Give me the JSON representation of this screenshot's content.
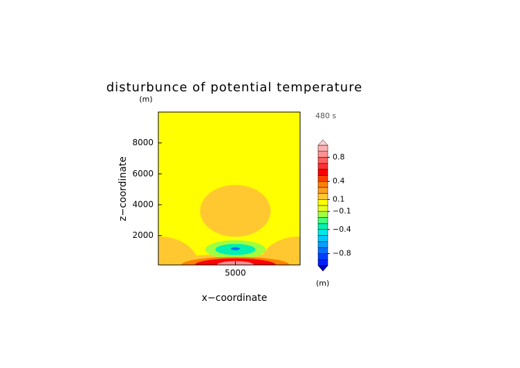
{
  "chart_data": {
    "type": "contour",
    "title": "disturbunce of potential temperature",
    "y_unit": "(m)",
    "x_unit": "(m)",
    "time_label": "480 s",
    "xlabel": "x−coordinate",
    "ylabel": "z−coordinate",
    "xlim": [
      0,
      9200
    ],
    "ylim": [
      100,
      10000
    ],
    "xticks": [
      5000
    ],
    "yticks": [
      2000,
      4000,
      6000,
      8000
    ],
    "background_value": 0.05,
    "blobs": [
      {
        "x": 0,
        "z": 100,
        "rx": 2600,
        "rz": 1850,
        "value": 0.15
      },
      {
        "x": 9200,
        "z": 100,
        "rx": 2600,
        "rz": 1850,
        "value": 0.15
      },
      {
        "x": 5000,
        "z": 100,
        "rx": 5200,
        "rz": 700,
        "value": 0.15
      },
      {
        "x": 5000,
        "z": 3600,
        "rx": 2290,
        "rz": 1680,
        "value": 0.15
      },
      {
        "x": 5000,
        "z": 1100,
        "rx": 1950,
        "rz": 600,
        "value": -0.15
      },
      {
        "x": 5000,
        "z": 1100,
        "rx": 1300,
        "rz": 360,
        "value": -0.35
      },
      {
        "x": 5000,
        "z": 1150,
        "rx": 300,
        "rz": 90,
        "value": -0.75
      },
      {
        "x": 5000,
        "z": 100,
        "rx": 3500,
        "rz": 520,
        "value": 0.35
      },
      {
        "x": 5000,
        "z": 100,
        "rx": 2620,
        "rz": 420,
        "value": 0.55
      },
      {
        "x": 5000,
        "z": 100,
        "rx": 1200,
        "rz": 250,
        "value": 0.85
      }
    ],
    "levels": [
      -1.0,
      -0.9,
      -0.8,
      -0.7,
      -0.6,
      -0.5,
      -0.4,
      -0.3,
      -0.2,
      -0.1,
      0,
      0.1,
      0.2,
      0.3,
      0.4,
      0.5,
      0.6,
      0.7,
      0.8,
      0.9,
      1.0
    ],
    "colors": [
      "#0000c8",
      "#0020ff",
      "#0040ff",
      "#0070ff",
      "#00a0ff",
      "#00c8ff",
      "#00e8e8",
      "#00f0b0",
      "#40ff80",
      "#a0ff40",
      "#e8ff20",
      "#ffff00",
      "#ffc830",
      "#ffa020",
      "#ff8000",
      "#ff4000",
      "#ff0000",
      "#ff3030",
      "#ff6060",
      "#ff9090",
      "#ffb0b0",
      "#ffd0d0"
    ],
    "colorbar_ticks": [
      0.8,
      0.4,
      0.1,
      {
        "value": -0.1,
        "label": "−0.1"
      },
      {
        "value": -0.4,
        "label": "−0.4"
      },
      {
        "value": -0.8,
        "label": "−0.8"
      }
    ]
  }
}
